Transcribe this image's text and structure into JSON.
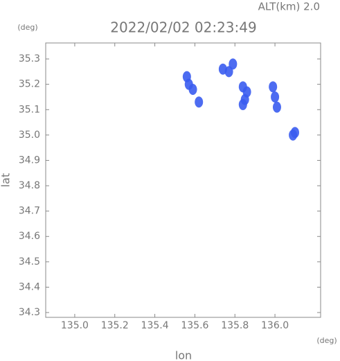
{
  "chart_data": {
    "type": "scatter",
    "title": "2022/02/02 02:23:49",
    "subtitle": "ALT(km) 2.0",
    "x_label": "lon",
    "y_label": "lat",
    "x_unit": "(deg)",
    "y_unit": "(deg)",
    "series": [
      {
        "color": "#3a5cf0",
        "x": [
          135.56,
          135.57,
          135.59,
          135.62,
          135.74,
          135.77,
          135.79,
          135.84,
          135.86,
          135.85,
          135.84,
          135.99,
          136.0,
          136.01,
          136.1,
          136.09
        ],
        "y": [
          35.23,
          35.2,
          35.18,
          35.13,
          35.26,
          35.25,
          35.28,
          35.19,
          35.17,
          35.14,
          35.12,
          35.19,
          35.15,
          35.11,
          35.01,
          35.0
        ]
      }
    ],
    "xlim": [
      134.855,
      136.228
    ],
    "ylim": [
      34.281,
      35.363
    ],
    "xticks": [
      {
        "value": 135.0,
        "label": "135.0"
      },
      135.2,
      135.4,
      135.6,
      135.8,
      {
        "value": 136.0,
        "label": "136.0"
      }
    ],
    "yticks": [
      34.3,
      34.4,
      34.5,
      34.6,
      34.7,
      34.8,
      34.9,
      {
        "value": 35.0,
        "label": "35.0"
      },
      35.1,
      35.2,
      35.3
    ],
    "grid": false
  }
}
